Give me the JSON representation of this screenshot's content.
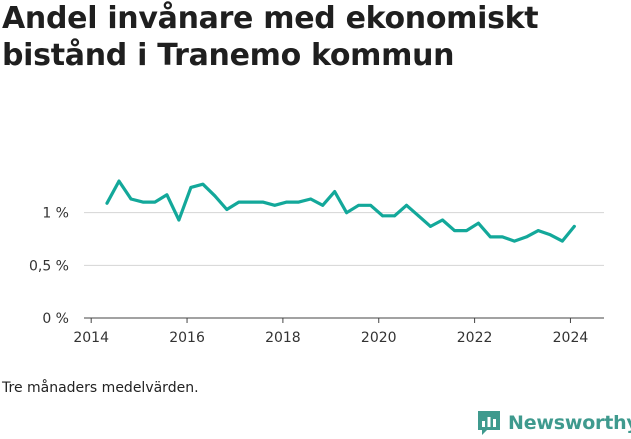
{
  "title": "Andel invånare med ekonomiskt bistånd i Tranemo kommun",
  "note": "Tre månaders medelvärden.",
  "brand": {
    "name": "Newsworthy",
    "icon": "newsworthy-logo-icon",
    "color": "#3f9a8e"
  },
  "chart_data": {
    "type": "line",
    "title": "Andel invånare med ekonomiskt bistånd i Tranemo kommun",
    "xlabel": "",
    "ylabel": "",
    "xlim": [
      2013.85,
      2024.7
    ],
    "ylim": [
      0,
      1.5
    ],
    "x_ticks": [
      {
        "value": 2014,
        "label": "2014"
      },
      {
        "value": 2016,
        "label": "2016"
      },
      {
        "value": 2018,
        "label": "2018"
      },
      {
        "value": 2020,
        "label": "2020"
      },
      {
        "value": 2022,
        "label": "2022"
      },
      {
        "value": 2024,
        "label": "2024"
      }
    ],
    "y_ticks": [
      {
        "value": 0,
        "label": "0 %"
      },
      {
        "value": 0.5,
        "label": "0,5 %"
      },
      {
        "value": 1,
        "label": "1 %"
      }
    ],
    "grid": "horizontal",
    "color": "#13a89a",
    "series": [
      {
        "x": [
          2014.33,
          2014.58,
          2014.83,
          2015.08,
          2015.33,
          2015.58,
          2015.83,
          2016.08,
          2016.33,
          2016.58,
          2016.83,
          2017.08,
          2017.33,
          2017.58,
          2017.83,
          2018.08,
          2018.33,
          2018.58,
          2018.83,
          2019.08,
          2019.33,
          2019.58,
          2019.83,
          2020.08,
          2020.33,
          2020.58,
          2020.83,
          2021.08,
          2021.33,
          2021.58,
          2021.83,
          2022.08,
          2022.33,
          2022.58,
          2022.83,
          2023.08,
          2023.33,
          2023.58,
          2023.83,
          2024.08
        ],
        "values": [
          1.09,
          1.3,
          1.13,
          1.1,
          1.1,
          1.17,
          0.93,
          1.24,
          1.27,
          1.16,
          1.03,
          1.1,
          1.1,
          1.1,
          1.07,
          1.1,
          1.1,
          1.13,
          1.07,
          1.2,
          1.0,
          1.07,
          1.07,
          0.97,
          0.97,
          1.07,
          0.97,
          0.87,
          0.93,
          0.83,
          0.83,
          0.9,
          0.77,
          0.77,
          0.73,
          0.77,
          0.83,
          0.79,
          0.73,
          0.87
        ]
      }
    ]
  }
}
